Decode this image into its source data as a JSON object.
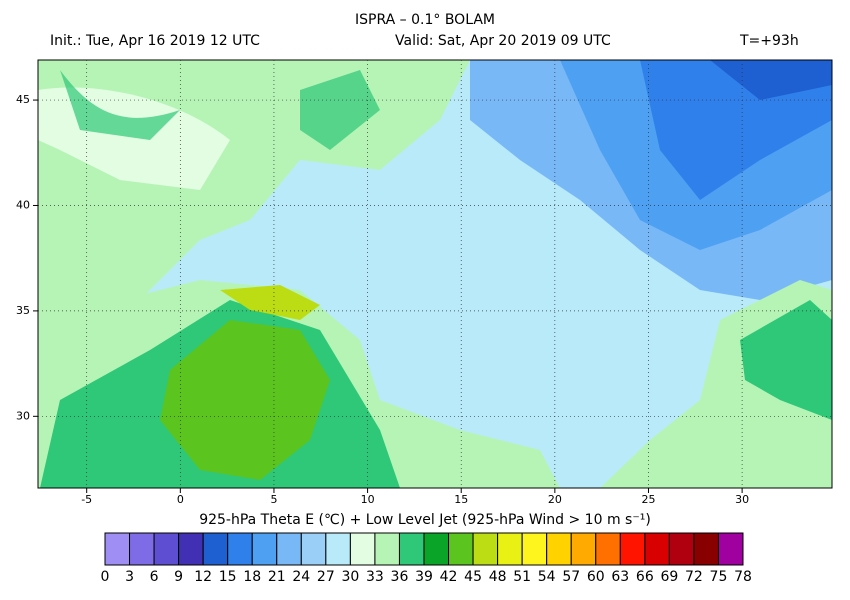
{
  "map": {
    "title": "ISPRA – 0.1° BOLAM",
    "init": "Init.: Tue, Apr 16 2019  12 UTC",
    "valid": "Valid: Sat, Apr 20 2019  09 UTC",
    "lead": "T=+93h",
    "xlim": [
      -7.6,
      34.8
    ],
    "ylim": [
      26.6,
      46.9
    ],
    "xticks": [
      -5,
      0,
      5,
      10,
      15,
      20,
      25,
      30
    ],
    "yticks": [
      30,
      35,
      40,
      45
    ],
    "grid": true,
    "colorbar": {
      "label": "925-hPa Theta E (℃) + Low Level Jet (925-hPa Wind > 10 m s⁻¹)",
      "levels": [
        0,
        3,
        6,
        9,
        12,
        15,
        18,
        21,
        24,
        27,
        30,
        33,
        36,
        39,
        42,
        45,
        48,
        51,
        54,
        57,
        60,
        63,
        66,
        69,
        72,
        75,
        78
      ],
      "colors": [
        "#9f8ff5",
        "#7d6ce6",
        "#5e4ed2",
        "#4230b4",
        "#1e5fd2",
        "#2f80ea",
        "#4ea0f2",
        "#78b8f6",
        "#9ad0f8",
        "#b8eafa",
        "#e2fde2",
        "#b6f4b6",
        "#2ec878",
        "#0aa428",
        "#5cc41e",
        "#bcdc14",
        "#e8f014",
        "#fff51e",
        "#ffd200",
        "#ffaa00",
        "#ff7000",
        "#ff1400",
        "#d80000",
        "#b00010",
        "#880000",
        "#a000a0",
        "#ff00ff"
      ]
    }
  }
}
